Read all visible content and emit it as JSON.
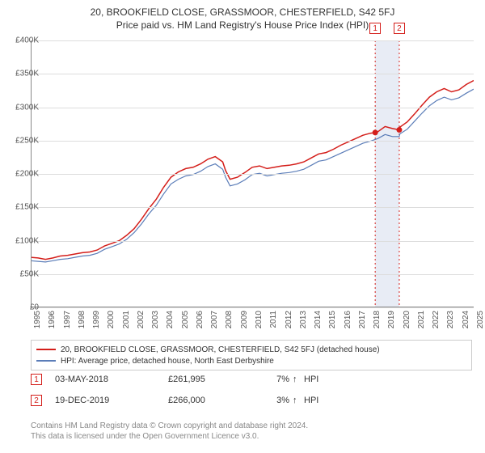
{
  "title": "20, BROOKFIELD CLOSE, GRASSMOOR, CHESTERFIELD, S42 5FJ",
  "subtitle": "Price paid vs. HM Land Registry's House Price Index (HPI)",
  "chart": {
    "type": "line",
    "background_color": "#ffffff",
    "grid_color": "#dddddd",
    "axis_color": "#888888",
    "ylim": [
      0,
      400000
    ],
    "ytick_step": 50000,
    "yticks": [
      "£0",
      "£50K",
      "£100K",
      "£150K",
      "£200K",
      "£250K",
      "£300K",
      "£350K",
      "£400K"
    ],
    "xlim": [
      1995,
      2025
    ],
    "xticks": [
      "1995",
      "1996",
      "1997",
      "1998",
      "1999",
      "2000",
      "2001",
      "2002",
      "2003",
      "2004",
      "2005",
      "2006",
      "2007",
      "2008",
      "2009",
      "2010",
      "2011",
      "2012",
      "2013",
      "2014",
      "2015",
      "2016",
      "2017",
      "2018",
      "2019",
      "2020",
      "2021",
      "2022",
      "2023",
      "2024",
      "2025"
    ],
    "highlights": [
      {
        "x": 2018.33,
        "label": "1",
        "color": "#d41e1a"
      },
      {
        "x": 2019.96,
        "label": "2",
        "color": "#d41e1a"
      }
    ],
    "highlight_band": {
      "from": 2018.33,
      "to": 2019.96,
      "fill": "#e8ecf5"
    },
    "marker_points": [
      {
        "x": 2018.33,
        "y": 261995,
        "color": "#d41e1a"
      },
      {
        "x": 2019.96,
        "y": 266000,
        "color": "#d41e1a"
      }
    ],
    "series": [
      {
        "name": "price_paid",
        "label": "20, BROOKFIELD CLOSE, GRASSMOOR, CHESTERFIELD, S42 5FJ (detached house)",
        "color": "#d41e1a",
        "line_width": 1.5,
        "data": [
          [
            1995,
            75000
          ],
          [
            1995.5,
            74000
          ],
          [
            1996,
            72000
          ],
          [
            1996.5,
            74000
          ],
          [
            1997,
            77000
          ],
          [
            1997.5,
            78000
          ],
          [
            1998,
            80000
          ],
          [
            1998.5,
            82000
          ],
          [
            1999,
            83000
          ],
          [
            1999.5,
            86000
          ],
          [
            2000,
            92000
          ],
          [
            2000.5,
            96000
          ],
          [
            2001,
            100000
          ],
          [
            2001.5,
            108000
          ],
          [
            2002,
            118000
          ],
          [
            2002.5,
            132000
          ],
          [
            2003,
            148000
          ],
          [
            2003.5,
            162000
          ],
          [
            2004,
            180000
          ],
          [
            2004.5,
            195000
          ],
          [
            2005,
            203000
          ],
          [
            2005.5,
            208000
          ],
          [
            2006,
            210000
          ],
          [
            2006.5,
            215000
          ],
          [
            2007,
            222000
          ],
          [
            2007.5,
            226000
          ],
          [
            2008,
            218000
          ],
          [
            2008.2,
            205000
          ],
          [
            2008.5,
            192000
          ],
          [
            2009,
            195000
          ],
          [
            2009.5,
            202000
          ],
          [
            2010,
            210000
          ],
          [
            2010.5,
            212000
          ],
          [
            2011,
            208000
          ],
          [
            2011.5,
            210000
          ],
          [
            2012,
            212000
          ],
          [
            2012.5,
            213000
          ],
          [
            2013,
            215000
          ],
          [
            2013.5,
            218000
          ],
          [
            2014,
            224000
          ],
          [
            2014.5,
            230000
          ],
          [
            2015,
            232000
          ],
          [
            2015.5,
            237000
          ],
          [
            2016,
            243000
          ],
          [
            2016.5,
            248000
          ],
          [
            2017,
            253000
          ],
          [
            2017.5,
            258000
          ],
          [
            2018,
            261000
          ],
          [
            2018.33,
            261995
          ],
          [
            2018.5,
            263000
          ],
          [
            2019,
            271000
          ],
          [
            2019.5,
            268000
          ],
          [
            2019.96,
            266000
          ],
          [
            2020,
            270000
          ],
          [
            2020.5,
            278000
          ],
          [
            2021,
            290000
          ],
          [
            2021.5,
            303000
          ],
          [
            2022,
            315000
          ],
          [
            2022.5,
            323000
          ],
          [
            2023,
            328000
          ],
          [
            2023.5,
            323000
          ],
          [
            2024,
            326000
          ],
          [
            2024.5,
            334000
          ],
          [
            2025,
            340000
          ]
        ]
      },
      {
        "name": "hpi",
        "label": "HPI: Average price, detached house, North East Derbyshire",
        "color": "#5b7db8",
        "line_width": 1.2,
        "data": [
          [
            1995,
            70000
          ],
          [
            1995.5,
            69000
          ],
          [
            1996,
            68000
          ],
          [
            1996.5,
            70000
          ],
          [
            1997,
            72000
          ],
          [
            1997.5,
            73000
          ],
          [
            1998,
            75000
          ],
          [
            1998.5,
            77000
          ],
          [
            1999,
            78000
          ],
          [
            1999.5,
            81000
          ],
          [
            2000,
            87000
          ],
          [
            2000.5,
            91000
          ],
          [
            2001,
            95000
          ],
          [
            2001.5,
            102000
          ],
          [
            2002,
            112000
          ],
          [
            2002.5,
            125000
          ],
          [
            2003,
            140000
          ],
          [
            2003.5,
            153000
          ],
          [
            2004,
            170000
          ],
          [
            2004.5,
            185000
          ],
          [
            2005,
            192000
          ],
          [
            2005.5,
            197000
          ],
          [
            2006,
            199000
          ],
          [
            2006.5,
            204000
          ],
          [
            2007,
            211000
          ],
          [
            2007.5,
            215000
          ],
          [
            2008,
            207000
          ],
          [
            2008.2,
            195000
          ],
          [
            2008.5,
            182000
          ],
          [
            2009,
            185000
          ],
          [
            2009.5,
            191000
          ],
          [
            2010,
            199000
          ],
          [
            2010.5,
            201000
          ],
          [
            2011,
            197000
          ],
          [
            2011.5,
            199000
          ],
          [
            2012,
            201000
          ],
          [
            2012.5,
            202000
          ],
          [
            2013,
            204000
          ],
          [
            2013.5,
            207000
          ],
          [
            2014,
            213000
          ],
          [
            2014.5,
            219000
          ],
          [
            2015,
            221000
          ],
          [
            2015.5,
            226000
          ],
          [
            2016,
            231000
          ],
          [
            2016.5,
            236000
          ],
          [
            2017,
            241000
          ],
          [
            2017.5,
            246000
          ],
          [
            2018,
            249000
          ],
          [
            2018.5,
            253000
          ],
          [
            2019,
            259000
          ],
          [
            2019.5,
            256000
          ],
          [
            2019.96,
            256000
          ],
          [
            2020,
            260000
          ],
          [
            2020.5,
            267000
          ],
          [
            2021,
            279000
          ],
          [
            2021.5,
            291000
          ],
          [
            2022,
            302000
          ],
          [
            2022.5,
            310000
          ],
          [
            2023,
            315000
          ],
          [
            2023.5,
            311000
          ],
          [
            2024,
            314000
          ],
          [
            2024.5,
            321000
          ],
          [
            2025,
            327000
          ]
        ]
      }
    ]
  },
  "sales": [
    {
      "marker": "1",
      "marker_color": "#d41e1a",
      "date": "03-MAY-2018",
      "price": "£261,995",
      "pct": "7%",
      "arrow": "↑",
      "vs": "HPI"
    },
    {
      "marker": "2",
      "marker_color": "#d41e1a",
      "date": "19-DEC-2019",
      "price": "£266,000",
      "pct": "3%",
      "arrow": "↑",
      "vs": "HPI"
    }
  ],
  "footer_line1": "Contains HM Land Registry data © Crown copyright and database right 2024.",
  "footer_line2": "This data is licensed under the Open Government Licence v3.0.",
  "label_fontsize": 10
}
